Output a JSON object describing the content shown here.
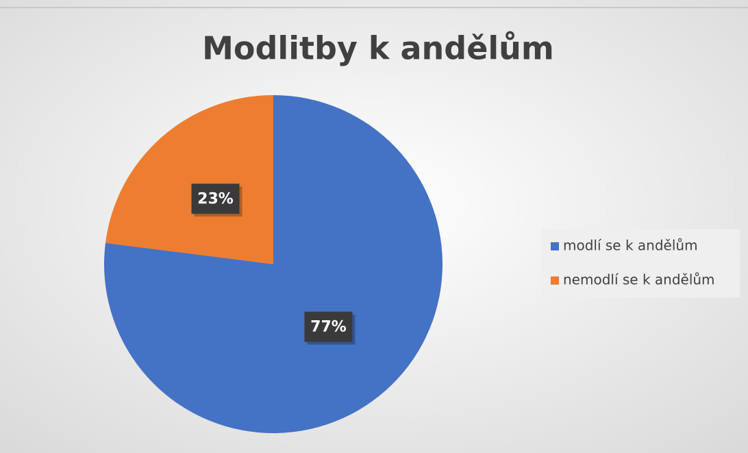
{
  "chart_data": {
    "type": "pie",
    "title": "Modlitby k andělům",
    "categories": [
      "modlí se k andělům",
      "nemodlí se k andělům"
    ],
    "values": [
      77,
      23
    ],
    "value_labels": [
      "77%",
      "23%"
    ],
    "colors": [
      "#4472c4",
      "#ed7d31"
    ],
    "legend": "right"
  }
}
